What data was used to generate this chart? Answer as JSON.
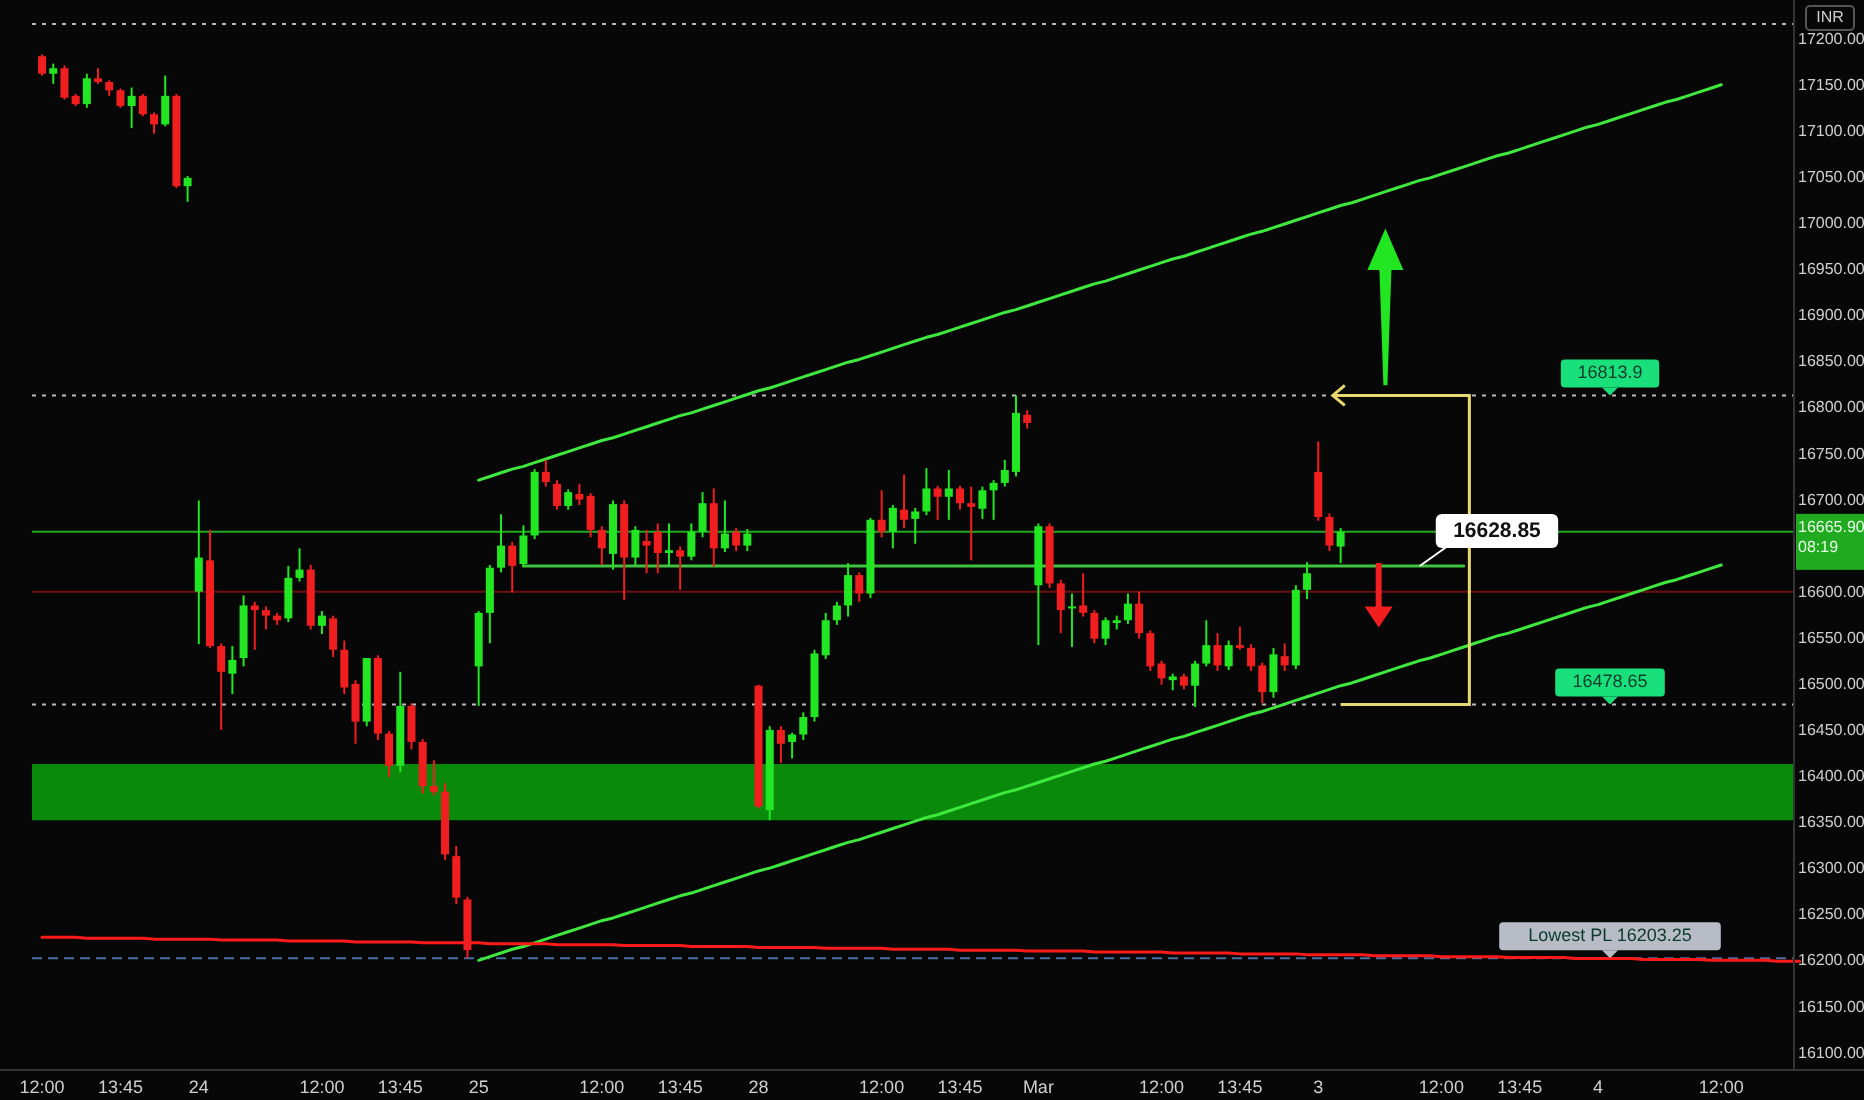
{
  "chart_data": {
    "type": "candlestick",
    "categories": [
      "12:00",
      null,
      null,
      null,
      null,
      null,
      null,
      "13:45",
      null,
      null,
      null,
      null,
      null,
      null,
      "24",
      null,
      null,
      null,
      null,
      null,
      null,
      null,
      null,
      null,
      null,
      "12:00",
      null,
      null,
      null,
      null,
      null,
      null,
      "13:45",
      null,
      null,
      null,
      null,
      null,
      null,
      "25",
      null,
      null,
      null,
      null,
      null,
      null,
      null,
      null,
      null,
      null,
      "12:00",
      null,
      null,
      null,
      null,
      null,
      null,
      "13:45",
      null,
      null,
      null,
      null,
      null,
      null,
      "28",
      null,
      null,
      null,
      null,
      null,
      null,
      null,
      null,
      null,
      null,
      "12:00",
      null,
      null,
      null,
      null,
      null,
      null,
      "13:45",
      null,
      null,
      null,
      null,
      null,
      null,
      "Mar",
      null,
      null,
      null,
      null,
      null,
      null,
      null,
      null,
      null,
      null,
      "12:00",
      null,
      null,
      null,
      null,
      null,
      null,
      "13:45",
      null,
      null,
      null,
      null,
      null,
      null,
      "3",
      null,
      null,
      null,
      null,
      null,
      null,
      null,
      null,
      null,
      null,
      "12:00",
      null,
      null,
      null,
      null,
      null,
      null,
      "13:45",
      null,
      null,
      null,
      null,
      null,
      null,
      "4",
      null,
      null,
      null,
      null,
      null,
      null,
      null,
      null,
      null,
      null,
      "12:00",
      null,
      null,
      null,
      null,
      null,
      null,
      null
    ],
    "ohlc": [
      [
        17182,
        17184,
        17161,
        17163
      ],
      [
        17163,
        17174,
        17152,
        17169
      ],
      [
        17169,
        17172,
        17135,
        17137
      ],
      [
        17139,
        17141,
        17128,
        17130
      ],
      [
        17130,
        17163,
        17126,
        17158
      ],
      [
        17158,
        17169,
        17152,
        17154
      ],
      [
        17154,
        17156,
        17139,
        17145
      ],
      [
        17145,
        17147,
        17126,
        17128
      ],
      [
        17128,
        17148,
        17104,
        17139
      ],
      [
        17139,
        17141,
        17117,
        17119
      ],
      [
        17119,
        17121,
        17098,
        17108
      ],
      [
        17108,
        17161,
        17106,
        17139
      ],
      [
        17139,
        17141,
        17039,
        17041
      ],
      [
        17041,
        17052,
        17024,
        17050
      ],
      [
        16601,
        16700,
        16544,
        16638
      ],
      [
        16635,
        16668,
        16540,
        16542
      ],
      [
        16542,
        16545,
        16451,
        16514
      ],
      [
        16512,
        16542,
        16490,
        16527
      ],
      [
        16529,
        16597,
        16520,
        16586
      ],
      [
        16586,
        16590,
        16538,
        16581
      ],
      [
        16581,
        16585,
        16560,
        16575
      ],
      [
        16575,
        16578,
        16565,
        16570
      ],
      [
        16572,
        16629,
        16568,
        16616
      ],
      [
        16616,
        16648,
        16612,
        16625
      ],
      [
        16625,
        16630,
        16560,
        16564
      ],
      [
        16564,
        16580,
        16555,
        16575
      ],
      [
        16572,
        16575,
        16530,
        16538
      ],
      [
        16538,
        16548,
        16490,
        16497
      ],
      [
        16501,
        16505,
        16436,
        16460
      ],
      [
        16460,
        16529,
        16455,
        16529
      ],
      [
        16529,
        16532,
        16440,
        16447
      ],
      [
        16447,
        16450,
        16400,
        16412
      ],
      [
        16412,
        16514,
        16405,
        16477
      ],
      [
        16477,
        16480,
        16430,
        16438
      ],
      [
        16438,
        16441,
        16382,
        16390
      ],
      [
        16390,
        16418,
        16380,
        16384
      ],
      [
        16384,
        16393,
        16310,
        16316
      ],
      [
        16314,
        16325,
        16262,
        16269
      ],
      [
        16267,
        16270,
        16203.25,
        16212
      ],
      [
        16520,
        16580,
        16477,
        16578
      ],
      [
        16578,
        16630,
        16545,
        16627
      ],
      [
        16627,
        16685,
        16622,
        16651
      ],
      [
        16651,
        16655,
        16600,
        16629
      ],
      [
        16631,
        16673,
        16628,
        16662
      ],
      [
        16662,
        16734,
        16658,
        16731
      ],
      [
        16731,
        16744,
        16715,
        16720
      ],
      [
        16718,
        16722,
        16690,
        16694
      ],
      [
        16694,
        16712,
        16690,
        16709
      ],
      [
        16707,
        16718,
        16695,
        16701
      ],
      [
        16705,
        16708,
        16660,
        16668
      ],
      [
        16668,
        16672,
        16630,
        16648
      ],
      [
        16642,
        16700,
        16625,
        16696
      ],
      [
        16696,
        16700,
        16592,
        16638
      ],
      [
        16638,
        16672,
        16630,
        16668
      ],
      [
        16656,
        16668,
        16621,
        16651
      ],
      [
        16666,
        16675,
        16621,
        16643
      ],
      [
        16643,
        16675,
        16630,
        16646
      ],
      [
        16646,
        16650,
        16603,
        16639
      ],
      [
        16639,
        16675,
        16635,
        16666
      ],
      [
        16666,
        16709,
        16660,
        16697
      ],
      [
        16697,
        16713,
        16628,
        16648
      ],
      [
        16648,
        16700,
        16644,
        16664
      ],
      [
        16666,
        16670,
        16645,
        16651
      ],
      [
        16651,
        16669,
        16645,
        16664
      ],
      [
        16499,
        16500,
        16366,
        16368
      ],
      [
        16364,
        16455,
        16353,
        16451
      ],
      [
        16451,
        16455,
        16415,
        16436
      ],
      [
        16438,
        16448,
        16420,
        16446
      ],
      [
        16446,
        16470,
        16440,
        16465
      ],
      [
        16465,
        16538,
        16460,
        16534
      ],
      [
        16532,
        16578,
        16528,
        16570
      ],
      [
        16570,
        16590,
        16565,
        16586
      ],
      [
        16586,
        16632,
        16574,
        16619
      ],
      [
        16619,
        16622,
        16590,
        16599
      ],
      [
        16599,
        16681,
        16594,
        16679
      ],
      [
        16679,
        16711,
        16660,
        16666
      ],
      [
        16666,
        16695,
        16648,
        16692
      ],
      [
        16690,
        16728,
        16670,
        16679
      ],
      [
        16680,
        16692,
        16653,
        16688
      ],
      [
        16688,
        16735,
        16684,
        16713
      ],
      [
        16713,
        16716,
        16679,
        16704
      ],
      [
        16704,
        16733,
        16679,
        16713
      ],
      [
        16713,
        16716,
        16690,
        16697
      ],
      [
        16697,
        16715,
        16635,
        16693
      ],
      [
        16691,
        16715,
        16680,
        16711
      ],
      [
        16711,
        16722,
        16679,
        16719
      ],
      [
        16719,
        16744,
        16715,
        16733
      ],
      [
        16731,
        16813.9,
        16726,
        16795
      ],
      [
        16793,
        16798,
        16778,
        16784
      ],
      [
        16608,
        16675,
        16543,
        16672
      ],
      [
        16672,
        16675,
        16605,
        16610
      ],
      [
        16610,
        16614,
        16556,
        16581
      ],
      [
        16583,
        16599,
        16541,
        16585
      ],
      [
        16586,
        16621,
        16574,
        16578
      ],
      [
        16578,
        16581,
        16545,
        16550
      ],
      [
        16550,
        16573,
        16543,
        16570
      ],
      [
        16567,
        16575,
        16560,
        16570
      ],
      [
        16570,
        16599,
        16566,
        16588
      ],
      [
        16588,
        16601,
        16550,
        16556
      ],
      [
        16556,
        16559,
        16515,
        16520
      ],
      [
        16523,
        16526,
        16500,
        16507
      ],
      [
        16505,
        16512,
        16494,
        16509
      ],
      [
        16509,
        16512,
        16495,
        16499
      ],
      [
        16499,
        16526,
        16476,
        16523
      ],
      [
        16523,
        16570,
        16520,
        16543
      ],
      [
        16543,
        16556,
        16515,
        16521
      ],
      [
        16520,
        16548,
        16516,
        16543
      ],
      [
        16543,
        16563,
        16538,
        16540
      ],
      [
        16540,
        16544,
        16515,
        16520
      ],
      [
        16521,
        16524,
        16480,
        16492
      ],
      [
        16492,
        16540,
        16486,
        16533
      ],
      [
        16531,
        16545,
        16515,
        16521
      ],
      [
        16521,
        16608,
        16517,
        16603
      ],
      [
        16603,
        16633,
        16593,
        16621
      ],
      [
        16731,
        16764,
        16678,
        16682
      ],
      [
        16682,
        16686,
        16645,
        16651
      ],
      [
        16650,
        16670,
        16632,
        16665.9
      ],
      null,
      null,
      null,
      null,
      null,
      null,
      null,
      null,
      null,
      null,
      null,
      null,
      null,
      null,
      null,
      null,
      null,
      null,
      null,
      null,
      null,
      null,
      null,
      null,
      null,
      null,
      null,
      null,
      null,
      null,
      null,
      null,
      null,
      null,
      null,
      null,
      null,
      null,
      null,
      null,
      null
    ],
    "colors": [
      "#f01e1e",
      "#22e622",
      "#f01e1e",
      "#f01e1e",
      "#22e622",
      "#f01e1e",
      "#f01e1e",
      "#f01e1e",
      "#22e622",
      "#f01e1e",
      "#f01e1e",
      "#22e622",
      "#f01e1e",
      "#22e622",
      "#22e622",
      "#f01e1e",
      "#f01e1e",
      "#22e622",
      "#22e622",
      "#f01e1e",
      "#f01e1e",
      "#f01e1e",
      "#22e622",
      "#22e622",
      "#f01e1e",
      "#22e622",
      "#f01e1e",
      "#f01e1e",
      "#f01e1e",
      "#22e622",
      "#f01e1e",
      "#f01e1e",
      "#22e622",
      "#f01e1e",
      "#f01e1e",
      "#f01e1e",
      "#f01e1e",
      "#f01e1e",
      "#f01e1e",
      "#22e622",
      "#22e622",
      "#22e622",
      "#f01e1e",
      "#22e622",
      "#22e622",
      "#f01e1e",
      "#f01e1e",
      "#22e622",
      "#f01e1e",
      "#f01e1e",
      "#f01e1e",
      "#22e622",
      "#f01e1e",
      "#22e622",
      "#f01e1e",
      "#f01e1e",
      "#22e622",
      "#f01e1e",
      "#22e622",
      "#22e622",
      "#f01e1e",
      "#22e622",
      "#f01e1e",
      "#22e622",
      "#f01e1e",
      "#22e622",
      "#f01e1e",
      "#22e622",
      "#22e622",
      "#22e622",
      "#22e622",
      "#22e622",
      "#22e622",
      "#f01e1e",
      "#22e622",
      "#f01e1e",
      "#22e622",
      "#f01e1e",
      "#22e622",
      "#22e622",
      "#f01e1e",
      "#22e622",
      "#f01e1e",
      "#f01e1e",
      "#22e622",
      "#22e622",
      "#22e622",
      "#22e622",
      "#f01e1e",
      "#22e622",
      "#f01e1e",
      "#f01e1e",
      "#22e622",
      "#f01e1e",
      "#f01e1e",
      "#22e622",
      "#22e622",
      "#22e622",
      "#f01e1e",
      "#f01e1e",
      "#f01e1e",
      "#22e622",
      "#f01e1e",
      "#22e622",
      "#22e622",
      "#f01e1e",
      "#22e622",
      "#f01e1e",
      "#f01e1e",
      "#f01e1e",
      "#22e622",
      "#f01e1e",
      "#22e622",
      "#22e622",
      "#f01e1e",
      "#f01e1e",
      "#22e622",
      null,
      null,
      null,
      null,
      null,
      null,
      null,
      null,
      null,
      null,
      null,
      null,
      null,
      null,
      null,
      null,
      null,
      null,
      null,
      null,
      null,
      null,
      null,
      null,
      null,
      null,
      null,
      null,
      null,
      null,
      null,
      null,
      null,
      null,
      null,
      null,
      null,
      null,
      null,
      null,
      null
    ],
    "series": [
      {
        "type": "line",
        "color": "#3ee83e",
        "values": [
          null,
          null,
          null,
          null,
          null,
          null,
          null,
          null,
          null,
          null,
          null,
          null,
          null,
          null,
          null,
          null,
          null,
          null,
          null,
          null,
          null,
          null,
          null,
          null,
          null,
          null,
          null,
          null,
          null,
          null,
          null,
          null,
          null,
          null,
          null,
          null,
          null,
          null,
          null,
          16722,
          16726,
          16730,
          16734,
          16737,
          16741,
          16745,
          16749,
          16753,
          16757,
          16761,
          16765,
          16768,
          16772,
          16776,
          16780,
          16784,
          16788,
          16792,
          16795,
          16799,
          16803,
          16807,
          16811,
          16815,
          16819,
          16822,
          16826,
          16830,
          16834,
          16838,
          16842,
          16846,
          16850,
          16853,
          16857,
          16861,
          16865,
          16869,
          16873,
          16877,
          16880,
          16884,
          16888,
          16892,
          16896,
          16900,
          16904,
          16907,
          16911,
          16915,
          16919,
          16923,
          16927,
          16931,
          16935,
          16938,
          16942,
          16946,
          16950,
          16954,
          16958,
          16962,
          16965,
          16969,
          16973,
          16977,
          16981,
          16985,
          16989,
          16992,
          16996,
          17000,
          17004,
          17008,
          17012,
          17016,
          17020,
          17023,
          17027,
          17031,
          17035,
          17039,
          17043,
          17047,
          17050,
          17054,
          17058,
          17062,
          17066,
          17070,
          17074,
          17077,
          17081,
          17085,
          17089,
          17093,
          17097,
          17101,
          17105,
          17108,
          17112,
          17116,
          17120,
          17124,
          17128,
          17132,
          17135,
          17139,
          17143,
          17147,
          17151,
          null,
          null,
          null,
          null,
          null,
          null,
          null
        ]
      },
      {
        "type": "line",
        "color": "#3ee83e",
        "values": [
          null,
          null,
          null,
          null,
          null,
          null,
          null,
          null,
          null,
          null,
          null,
          null,
          null,
          null,
          null,
          null,
          null,
          null,
          null,
          null,
          null,
          null,
          null,
          null,
          null,
          null,
          null,
          null,
          null,
          null,
          null,
          null,
          null,
          null,
          null,
          null,
          null,
          null,
          null,
          16201,
          16205,
          16209,
          16213,
          16216,
          16220,
          16224,
          16228,
          16232,
          16236,
          16240,
          16244,
          16247,
          16251,
          16255,
          16259,
          16263,
          16267,
          16271,
          16274,
          16278,
          16282,
          16286,
          16290,
          16294,
          16298,
          16301,
          16305,
          16309,
          16313,
          16317,
          16321,
          16325,
          16329,
          16332,
          16336,
          16340,
          16344,
          16348,
          16352,
          16356,
          16359,
          16363,
          16367,
          16371,
          16375,
          16379,
          16383,
          16386,
          16390,
          16394,
          16398,
          16402,
          16406,
          16410,
          16414,
          16417,
          16421,
          16425,
          16429,
          16433,
          16437,
          16441,
          16444,
          16448,
          16452,
          16456,
          16460,
          16464,
          16468,
          16471,
          16475,
          16479,
          16483,
          16487,
          16491,
          16495,
          16499,
          16502,
          16506,
          16510,
          16514,
          16518,
          16522,
          16526,
          16529,
          16533,
          16537,
          16541,
          16545,
          16549,
          16553,
          16556,
          16560,
          16564,
          16568,
          16572,
          16576,
          16580,
          16584,
          16587,
          16591,
          16595,
          16599,
          16603,
          16607,
          16611,
          16614,
          16618,
          16622,
          16626,
          16630,
          null,
          null,
          null,
          null,
          null,
          null,
          null
        ]
      },
      {
        "type": "line",
        "color": "#ff1a1a",
        "values": [
          16226,
          16226,
          16226,
          16226,
          16225,
          16225,
          16225,
          16225,
          16225,
          16225,
          16224,
          16224,
          16224,
          16224,
          16224,
          16224,
          16223,
          16223,
          16223,
          16223,
          16223,
          16223,
          16222,
          16222,
          16222,
          16222,
          16222,
          16222,
          16221,
          16221,
          16221,
          16221,
          16221,
          16221,
          16220,
          16220,
          16220,
          16220,
          16220,
          16220,
          16219,
          16219,
          16219,
          16219,
          16219,
          16219,
          16218,
          16218,
          16218,
          16218,
          16218,
          16218,
          16217,
          16217,
          16217,
          16217,
          16217,
          16217,
          16216,
          16216,
          16216,
          16216,
          16216,
          16216,
          16215,
          16215,
          16215,
          16215,
          16215,
          16215,
          16214,
          16214,
          16214,
          16214,
          16214,
          16214,
          16213,
          16213,
          16213,
          16213,
          16213,
          16213,
          16212,
          16212,
          16212,
          16212,
          16212,
          16212,
          16211,
          16211,
          16211,
          16211,
          16211,
          16211,
          16210,
          16210,
          16210,
          16210,
          16210,
          16210,
          16210,
          16209,
          16209,
          16209,
          16209,
          16209,
          16209,
          16208,
          16208,
          16208,
          16208,
          16208,
          16208,
          16207,
          16207,
          16207,
          16207,
          16207,
          16207,
          16206,
          16206,
          16206,
          16206,
          16206,
          16206,
          16205,
          16205,
          16205,
          16205,
          16205,
          16205,
          16204,
          16204,
          16204,
          16204,
          16204,
          16204,
          16203,
          16203,
          16203,
          16203,
          16203,
          16203,
          16202,
          16202,
          16202,
          16202,
          16202,
          16202,
          16201,
          16201,
          16201,
          16201,
          16201,
          16201,
          16200,
          16200,
          16200
        ]
      },
      {
        "type": "line",
        "color": "#3ec43e",
        "values": [
          null,
          null,
          null,
          null,
          null,
          null,
          null,
          null,
          null,
          null,
          null,
          null,
          null,
          null,
          null,
          null,
          null,
          null,
          null,
          null,
          null,
          null,
          null,
          null,
          null,
          null,
          null,
          null,
          null,
          null,
          null,
          null,
          null,
          null,
          null,
          null,
          null,
          null,
          null,
          null,
          null,
          null,
          null,
          16628.85,
          16628.85,
          16628.85,
          16628.85,
          16628.85,
          16628.85,
          16628.85,
          16628.85,
          16628.85,
          16628.85,
          16628.85,
          16628.85,
          16628.85,
          16628.85,
          16628.85,
          16628.85,
          16628.85,
          16628.85,
          16628.85,
          16628.85,
          16628.85,
          16628.85,
          16628.85,
          16628.85,
          16628.85,
          16628.85,
          16628.85,
          16628.85,
          16628.85,
          16628.85,
          16628.85,
          16628.85,
          16628.85,
          16628.85,
          16628.85,
          16628.85,
          16628.85,
          16628.85,
          16628.85,
          16628.85,
          16628.85,
          16628.85,
          16628.85,
          16628.85,
          16628.85,
          16628.85,
          16628.85,
          16628.85,
          16628.85,
          16628.85,
          16628.85,
          16628.85,
          16628.85,
          16628.85,
          16628.85,
          16628.85,
          16628.85,
          16628.85,
          16628.85,
          16628.85,
          16628.85,
          16628.85,
          16628.85,
          16628.85,
          16628.85,
          16628.85,
          16628.85,
          16628.85,
          16628.85,
          16628.85,
          16628.85,
          16628.85,
          16628.85,
          16628.85,
          16628.85,
          16628.85,
          16628.85,
          16628.85,
          16628.85,
          16628.85,
          16628.85,
          16628.85,
          16628.85,
          16628.85,
          16628.85,
          null,
          null,
          null,
          null,
          null,
          null,
          null,
          null,
          null,
          null,
          null,
          null,
          null,
          null,
          null,
          null,
          null,
          null,
          null,
          null,
          null,
          null,
          null,
          null,
          null,
          null,
          null,
          null,
          null,
          null
        ]
      }
    ],
    "ref_lines": [
      {
        "axis": "y",
        "value": 17217,
        "color": "#bbbbbb",
        "line_style": "dotted"
      },
      {
        "axis": "y",
        "value": 16813.9,
        "label": "16813.9",
        "color": "#bbbbbb",
        "line_style": "dotted"
      },
      {
        "axis": "y",
        "value": 16478.65,
        "label": "16478.65",
        "color": "#bbbbbb",
        "line_style": "dotted"
      },
      {
        "axis": "y",
        "value": 16203.25,
        "label": "Lowest PL 16203.25",
        "color": "#4a6fa5",
        "line_style": "dashed"
      },
      {
        "axis": "y",
        "value": 16665.9,
        "label": "16665.90",
        "color": "#1faa1f",
        "line_style": "solid"
      },
      {
        "axis": "y",
        "value": 16601,
        "color": "#6a1212",
        "line_style": "solid"
      }
    ],
    "bands": [
      {
        "axis": "y",
        "from": 16353,
        "to": 16414,
        "color": "#0a8a0a"
      }
    ],
    "annotations": [
      "INR",
      "08:19",
      "16628.85"
    ],
    "ylim": [
      16082,
      17243
    ],
    "yticks": [
      {
        "value": 16100,
        "label": "16100.00"
      },
      {
        "value": 16150,
        "label": "16150.00"
      },
      {
        "value": 16200,
        "label": "16200.00"
      },
      {
        "value": 16250,
        "label": "16250.00"
      },
      {
        "value": 16300,
        "label": "16300.00"
      },
      {
        "value": 16350,
        "label": "16350.00"
      },
      {
        "value": 16400,
        "label": "16400.00"
      },
      {
        "value": 16450,
        "label": "16450.00"
      },
      {
        "value": 16500,
        "label": "16500.00"
      },
      {
        "value": 16550,
        "label": "16550.00"
      },
      {
        "value": 16600,
        "label": "16600.00"
      },
      {
        "value": 16700,
        "label": "16700.00"
      },
      {
        "value": 16750,
        "label": "16750.00"
      },
      {
        "value": 16800,
        "label": "16800.00"
      },
      {
        "value": 16850,
        "label": "16850.00"
      },
      {
        "value": 16900,
        "label": "16900.00"
      },
      {
        "value": 16950,
        "label": "16950.00"
      },
      {
        "value": 17000,
        "label": "17000.00"
      },
      {
        "value": 17050,
        "label": "17050.00"
      },
      {
        "value": 17100,
        "label": "17100.00"
      },
      {
        "value": 17150,
        "label": "17150.00"
      },
      {
        "value": 17200,
        "label": "17200.00"
      }
    ]
  }
}
